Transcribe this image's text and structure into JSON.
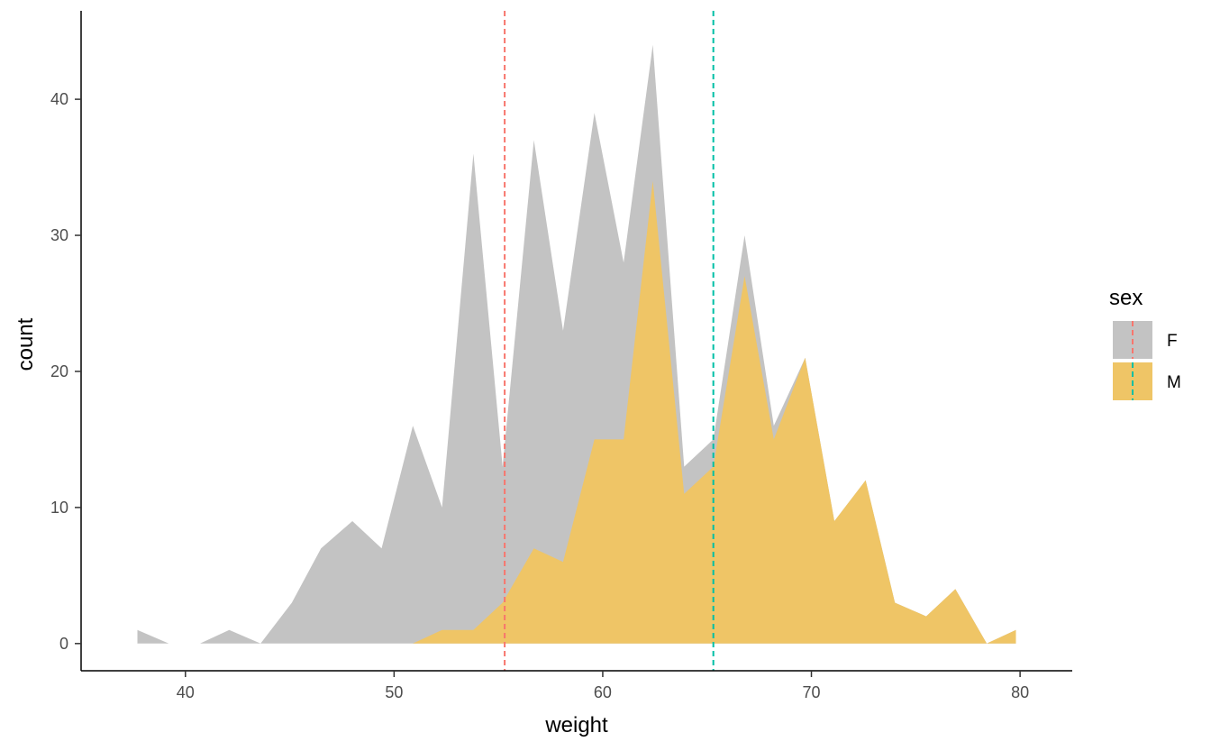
{
  "chart_data": {
    "type": "area",
    "xlabel": "weight",
    "ylabel": "count",
    "xlim": [
      35,
      82.5
    ],
    "ylim": [
      -2,
      46.5
    ],
    "x_ticks": [
      40,
      50,
      60,
      70,
      80
    ],
    "y_ticks": [
      0,
      10,
      20,
      30,
      40
    ],
    "grid": false,
    "legend_position": "right",
    "legend_title": "sex",
    "x": [
      37.7,
      39.2,
      40.7,
      42.1,
      43.6,
      45.1,
      46.5,
      48.0,
      49.4,
      50.9,
      52.3,
      53.8,
      55.2,
      56.7,
      58.1,
      59.6,
      61.0,
      62.4,
      63.9,
      65.3,
      66.8,
      68.2,
      69.7,
      71.1,
      72.6,
      74.0,
      75.5,
      76.9,
      78.4,
      79.8
    ],
    "series": [
      {
        "name": "F",
        "color": "#C3C3C3",
        "stacked_total": [
          1,
          0,
          0,
          1,
          0,
          3,
          7,
          9,
          7,
          16,
          10,
          36,
          13,
          37,
          23,
          39,
          28,
          44,
          13,
          15,
          30,
          16,
          21,
          9,
          12,
          3,
          2,
          4,
          0,
          1
        ]
      },
      {
        "name": "M",
        "color": "#EFC566",
        "values": [
          0,
          0,
          0,
          0,
          0,
          0,
          0,
          0,
          0,
          0,
          1,
          1,
          3,
          7,
          6,
          15,
          15,
          34,
          11,
          13,
          27,
          15,
          21,
          9,
          12,
          3,
          2,
          4,
          0,
          1
        ]
      }
    ],
    "mean_lines": [
      {
        "group": "F",
        "x": 55.3,
        "color": "#F8766D"
      },
      {
        "group": "M",
        "x": 65.3,
        "color": "#00BFA5"
      }
    ]
  }
}
